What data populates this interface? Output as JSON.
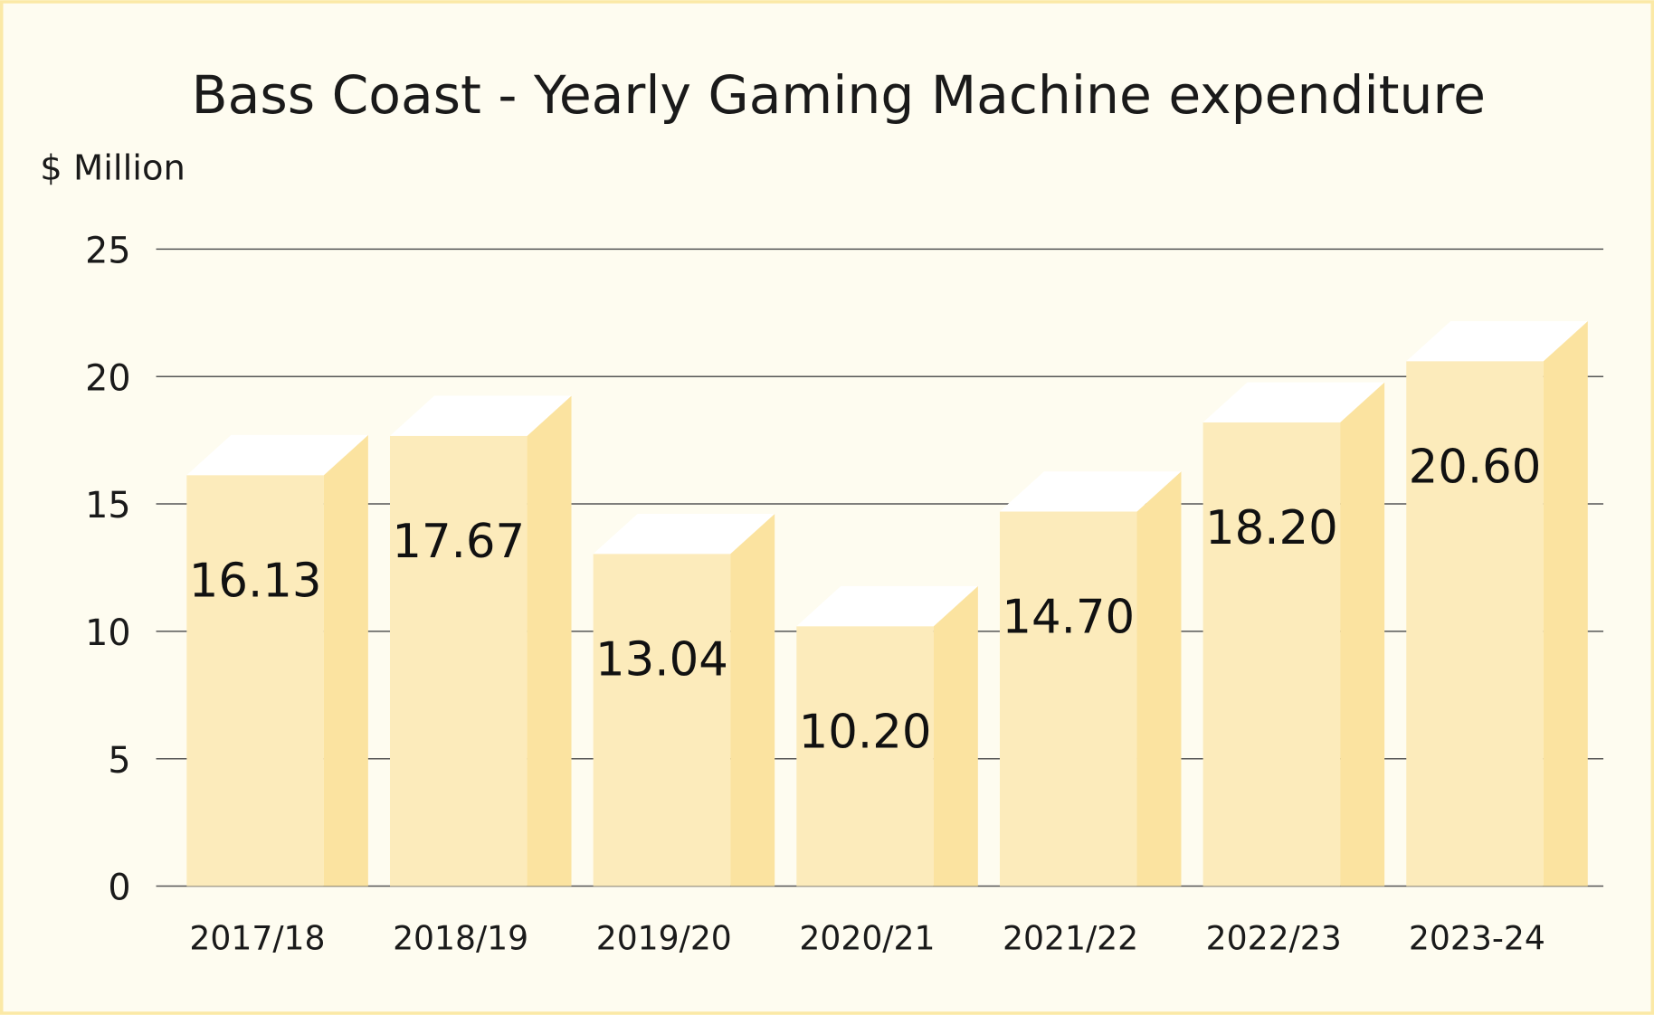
{
  "chart_data": {
    "type": "bar",
    "title": "Bass Coast - Yearly Gaming Machine expenditure",
    "ylabel": "$ Million",
    "xlabel": "",
    "ylim": [
      0,
      25
    ],
    "yticks": [
      0,
      5,
      10,
      15,
      20,
      25
    ],
    "grid": true,
    "categories": [
      "2017/18",
      "2018/19",
      "2019/20",
      "2020/21",
      "2021/22",
      "2022/23",
      "2023-24"
    ],
    "values": [
      16.13,
      17.67,
      13.04,
      10.2,
      14.7,
      18.2,
      20.6
    ],
    "data_labels": [
      "16.13",
      "17.67",
      "13.04",
      "10.20",
      "14.70",
      "18.20",
      "20.60"
    ],
    "colors": {
      "background": "#fefcf0",
      "border": "#fbe9a6",
      "bar_front": "#fcebbb",
      "bar_side": "#fbe3a0",
      "bar_top": "#ffffff",
      "grid": "#555555"
    }
  }
}
